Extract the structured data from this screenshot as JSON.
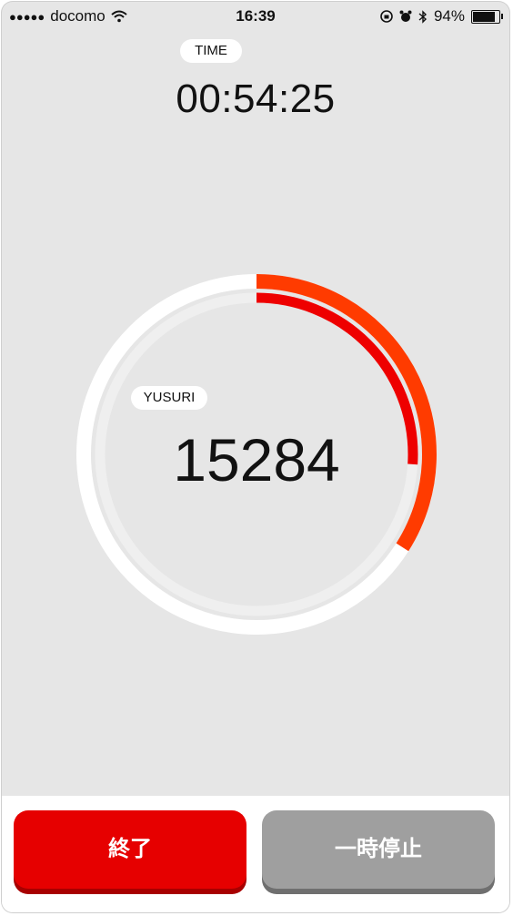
{
  "status_bar": {
    "signal": "●●●●●",
    "carrier": "docomo",
    "time": "16:39",
    "battery": "94%",
    "battery_level": 0.94
  },
  "timer": {
    "label": "TIME",
    "value": "00:54:25"
  },
  "counter": {
    "label": "YUSURI",
    "value": "15284",
    "outer_progress": 0.34,
    "inner_progress": 0.26
  },
  "buttons": {
    "end": "終了",
    "pause": "一時停止"
  },
  "colors": {
    "background": "#e6e6e6",
    "progress_outer": "#ff3b00",
    "progress_inner": "#ee0000",
    "end_button": "#e60000",
    "pause_button": "#9f9f9f"
  }
}
